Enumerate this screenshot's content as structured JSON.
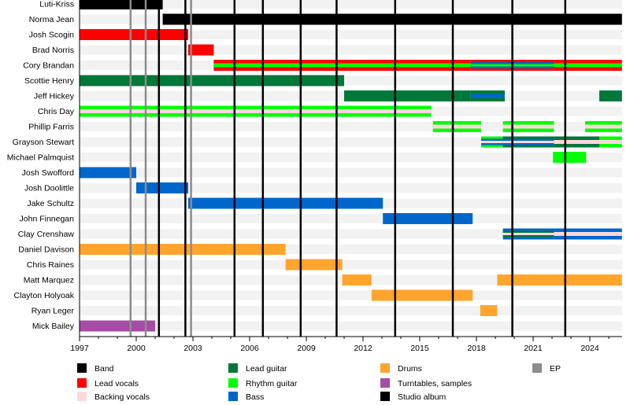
{
  "chart_data": {
    "type": "timeline",
    "xlim": [
      1997,
      2025.7
    ],
    "x_ticks": [
      "1997",
      "2000",
      "2003",
      "2006",
      "2009",
      "2012",
      "2015",
      "2018",
      "2021",
      "2024"
    ],
    "roles": [
      {
        "name": "Band",
        "color": "#000000"
      },
      {
        "name": "Lead vocals",
        "color": "#ff0000"
      },
      {
        "name": "Backing vocals",
        "color": "#ffd7dd"
      },
      {
        "name": "Lead guitar",
        "color": "#00783a"
      },
      {
        "name": "Rhythm guitar",
        "color": "#00ff00"
      },
      {
        "name": "Bass",
        "color": "#0066cc"
      },
      {
        "name": "Drums",
        "color": "#ffa52d"
      },
      {
        "name": "Turntables, samples",
        "color": "#a64ca6"
      },
      {
        "name": "Studio album",
        "color": "#000000"
      },
      {
        "name": "EP",
        "color": "#8c8c8c"
      }
    ],
    "members": [
      {
        "name": "Luti-Kriss",
        "segments": [
          {
            "start": 1997,
            "end": 2001.4,
            "roles": [
              "Band"
            ]
          }
        ]
      },
      {
        "name": "Norma Jean",
        "segments": [
          {
            "start": 2001.4,
            "end": 2025.7,
            "roles": [
              "Band"
            ]
          }
        ]
      },
      {
        "name": "Josh Scogin",
        "segments": [
          {
            "start": 1997,
            "end": 2002.75,
            "roles": [
              "Lead vocals"
            ]
          }
        ]
      },
      {
        "name": "Brad Norris",
        "segments": [
          {
            "start": 2002.75,
            "end": 2004.1,
            "roles": [
              "Lead vocals"
            ]
          }
        ]
      },
      {
        "name": "Cory Brandan",
        "segments": [
          {
            "start": 2004.1,
            "end": 2017.7,
            "roles": [
              "Lead vocals",
              "Rhythm guitar"
            ]
          },
          {
            "start": 2017.7,
            "end": 2022.1,
            "roles": [
              "Lead vocals",
              "Bass",
              "Rhythm guitar"
            ]
          },
          {
            "start": 2022.1,
            "end": 2025.7,
            "roles": [
              "Lead vocals",
              "Rhythm guitar"
            ]
          }
        ]
      },
      {
        "name": "Scottie Henry",
        "segments": [
          {
            "start": 1997,
            "end": 2011.0,
            "roles": [
              "Lead guitar"
            ]
          }
        ]
      },
      {
        "name": "Jeff Hickey",
        "segments": [
          {
            "start": 2011.0,
            "end": 2017.7,
            "roles": [
              "Lead guitar"
            ]
          },
          {
            "start": 2017.7,
            "end": 2019.5,
            "roles": [
              "Lead guitar",
              "Bass"
            ]
          },
          {
            "start": 2024.5,
            "end": 2025.7,
            "roles": [
              "Lead guitar"
            ]
          }
        ]
      },
      {
        "name": "Chris Day",
        "segments": [
          {
            "start": 1997,
            "end": 2015.6,
            "roles": [
              "Rhythm guitar",
              "Backing vocals"
            ]
          }
        ]
      },
      {
        "name": "Phillip Farris",
        "segments": [
          {
            "start": 2015.7,
            "end": 2018.25,
            "roles": [
              "Rhythm guitar",
              "Backing vocals"
            ]
          },
          {
            "start": 2019.4,
            "end": 2022.1,
            "roles": [
              "Rhythm guitar",
              "Backing vocals"
            ]
          },
          {
            "start": 2023.75,
            "end": 2025.7,
            "roles": [
              "Rhythm guitar",
              "Backing vocals"
            ]
          }
        ]
      },
      {
        "name": "Grayson Stewart",
        "segments": [
          {
            "start": 2018.25,
            "end": 2019.4,
            "roles": [
              "Rhythm guitar",
              "Bass",
              "Backing vocals"
            ]
          },
          {
            "start": 2019.4,
            "end": 2022.1,
            "roles": [
              "Lead guitar",
              "Bass",
              "Backing vocals"
            ]
          },
          {
            "start": 2022.1,
            "end": 2024.5,
            "roles": [
              "Lead guitar",
              "Backing vocals"
            ]
          },
          {
            "start": 2024.5,
            "end": 2025.7,
            "roles": [
              "Rhythm guitar",
              "Backing vocals"
            ]
          }
        ]
      },
      {
        "name": "Michael Palmquist",
        "segments": [
          {
            "start": 2022.05,
            "end": 2023.8,
            "roles": [
              "Rhythm guitar"
            ]
          }
        ]
      },
      {
        "name": "Josh Swofford",
        "segments": [
          {
            "start": 1997,
            "end": 2000.0,
            "roles": [
              "Bass"
            ]
          }
        ]
      },
      {
        "name": "Josh Doolittle",
        "segments": [
          {
            "start": 2000.0,
            "end": 2002.75,
            "roles": [
              "Bass"
            ]
          }
        ]
      },
      {
        "name": "Jake Schultz",
        "segments": [
          {
            "start": 2002.75,
            "end": 2013.05,
            "roles": [
              "Bass"
            ]
          }
        ]
      },
      {
        "name": "John Finnegan",
        "segments": [
          {
            "start": 2013.05,
            "end": 2017.8,
            "roles": [
              "Bass"
            ]
          }
        ]
      },
      {
        "name": "Clay Crenshaw",
        "segments": [
          {
            "start": 2019.4,
            "end": 2022.1,
            "roles": [
              "Bass",
              "Lead guitar",
              "Backing vocals"
            ]
          },
          {
            "start": 2022.1,
            "end": 2025.7,
            "roles": [
              "Bass",
              "Backing vocals"
            ]
          }
        ]
      },
      {
        "name": "Daniel Davison",
        "segments": [
          {
            "start": 1997,
            "end": 2007.9,
            "roles": [
              "Drums"
            ]
          }
        ]
      },
      {
        "name": "Chris Raines",
        "segments": [
          {
            "start": 2007.9,
            "end": 2010.9,
            "roles": [
              "Drums"
            ]
          }
        ]
      },
      {
        "name": "Matt Marquez",
        "segments": [
          {
            "start": 2010.9,
            "end": 2012.45,
            "roles": [
              "Drums"
            ]
          },
          {
            "start": 2019.1,
            "end": 2025.7,
            "roles": [
              "Drums"
            ]
          }
        ]
      },
      {
        "name": "Clayton Holyoak",
        "segments": [
          {
            "start": 2012.45,
            "end": 2017.8,
            "roles": [
              "Drums"
            ]
          }
        ]
      },
      {
        "name": "Ryan Leger",
        "segments": [
          {
            "start": 2018.2,
            "end": 2019.1,
            "roles": [
              "Drums"
            ]
          }
        ]
      },
      {
        "name": "Mick Bailey",
        "segments": [
          {
            "start": 1997,
            "end": 2001.0,
            "roles": [
              "Turntables, samples"
            ]
          }
        ]
      }
    ],
    "studio_albums": [
      2001.2,
      2002.6,
      2005.2,
      2006.7,
      2008.7,
      2010.6,
      2013.7,
      2016.75,
      2019.9,
      2022.7
    ],
    "eps": [
      1999.7,
      2000.5,
      2002.9
    ],
    "legend": {
      "placement": "bottom",
      "items": [
        "Band",
        "Lead vocals",
        "Backing vocals",
        "Lead guitar",
        "Rhythm guitar",
        "Bass",
        "Drums",
        "Turntables, samples",
        "Studio album",
        "EP"
      ]
    }
  }
}
